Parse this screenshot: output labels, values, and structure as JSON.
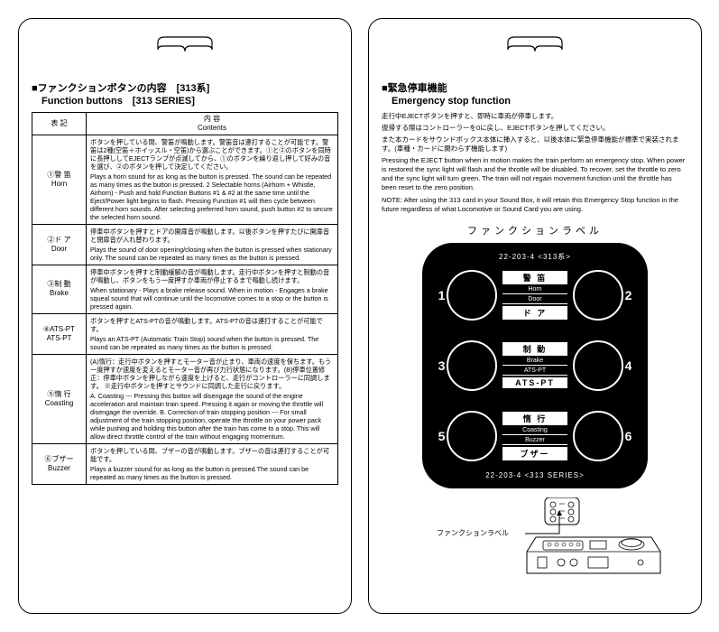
{
  "left": {
    "title_jp": "■ファンクションボタンの内容　[313系]",
    "title_en": "　Function buttons　[313 SERIES]",
    "th_label_jp": "表 記",
    "th_label_en": "",
    "th_content_jp": "内 容",
    "th_content_en": "Contents",
    "rows": [
      {
        "label_jp": "①警 笛",
        "label_en": "Horn",
        "jp": "ボタンを押している間、警笛が鳴動します。警笛音は連打することが可能です。警笛は2種(空笛＋ホイッスル・空笛)から選ぶことができます。①と②のボタンを同時に長押ししてEJECTランプが点滅してから、①のボタンを繰り返し押して好みの音を選び、②のボタンを押して決定してください。",
        "en": "Plays a horn sound for as long as the button is pressed. The sound can be repeated as many times as the button is pressed. 2 Selectable horns (Airhorn + Whistle, Airhorn) - Push and hold Function Buttons #1 & #2 at the same time until the Eject/Power light begins to flash. Pressing Function #1 will then cycle between different horn sounds. After selecting preferred horn sound, push button #2 to secure the selected horn sound."
      },
      {
        "label_jp": "②ド ア",
        "label_en": "Door",
        "jp": "停車中ボタンを押すとドアの開扉音が鳴動します。以後ボタンを押すたびに開扉音と閉扉音が入れ替わります。",
        "en": "Plays the sound of door opening/closing when the button is pressed when stationary only. The sound can be repeated as many times as the button is pressed."
      },
      {
        "label_jp": "③制 動",
        "label_en": "Brake",
        "jp": "停車中ボタンを押すと制動緩解の音が鳴動します。走行中ボタンを押すと制動の音が鳴動し、ボタンをもう一度押すか車両が停止するまで鳴動し続けます。",
        "en": "When stationary - Plays a brake release sound.\nWhen in motion - Engages a brake squeal sound that will continue until the locomotive comes to a stop or the button is pressed again."
      },
      {
        "label_jp": "④ATS-PT",
        "label_en": "ATS-PT",
        "jp": "ボタンを押すとATS-PTの音が鳴動します。ATS-PTの音は連打することが可能です。",
        "en": "Plays an ATS-PT (Automatic Train Stop) sound when the button is pressed. The sound can be repeated as many times as the button is pressed."
      },
      {
        "label_jp": "⑤惰 行",
        "label_en": "Coasting",
        "jp": "(A)惰行：走行中ボタンを押すとモーター音が止まり、車両の速度を保ちます。もう一度押すか速度を変えるとモーター音が再び力行状態になります。(B)停車位置修正：停車中ボタンを押しながら速度を上げると、走行がコントローラーに同調します。\n※走行中ボタンを押すとサウンドに同調した走行に戻ります。",
        "en": "A. Coasting --- Pressing this button will disengage the sound of the engine acceleration and maintain train speed. Pressing it again or moving the throttle will disengage the override.\nB. Correction of train stopping position --- For small adjustment of the train stopping position, operate the throttle on your power pack while pushing and holding this button after the train has come to a stop. This will allow direct throttle control of the train without engaging momentum."
      },
      {
        "label_jp": "⑥ブザー",
        "label_en": "Buzzer",
        "jp": "ボタンを押している間、ブザーの音が鳴動します。ブザーの音は連打することが可能です。",
        "en": "Plays a buzzer sound for as long as the button is pressed.The sound can be repeated as many times as the button is pressed."
      }
    ]
  },
  "right": {
    "es_title_jp": "■緊急停車機能",
    "es_title_en": "　Emergency stop function",
    "es_jp1": "走行中EJECTボタンを押すと、即時に車両が停車します。",
    "es_jp2": "復帰する際はコントローラーを0に戻し、EJECTボタンを押してください。",
    "es_jp3": "また本カードをサウンドボックス本体に挿入すると、以後本体に緊急停車機能が標準で実装されます。(車種・カードに関わらず機能します)",
    "es_en1": "Pressing the EJECT button when in motion makes the train perform an emergency stop. When power is restored the sync light will flash and the throttle will be disabled. To recover, set the throttle to zero and the sync light will turn green. The train will not regain movement function until the throttle has been reset to the zero position.",
    "es_en2": "NOTE: After using the 313 card in your Sound Box, it will retain this Emergency Stop function in the future regardless of what Locomotive or Sound Card you are using.",
    "label_caption": "ファンクションラベル",
    "black_label": {
      "top_text": "22-203-4 <313系>",
      "bottom_text": "22-203-4 <313 SERIES>",
      "rows": [
        {
          "l": "1",
          "r": "2",
          "main": "警 笛",
          "sub": "Horn",
          "main_pos": "top"
        },
        {
          "l": "3",
          "r": "4",
          "main": "ド ア",
          "sub": "Door",
          "main_pos": "bottom"
        },
        {
          "l": "",
          "r": "",
          "main": "制 動",
          "sub": "Brake",
          "main_pos": "top"
        },
        {
          "l": "",
          "r": "",
          "main": "ATS-PT",
          "sub": "ATS-PT",
          "main_pos": "bottom"
        },
        {
          "l": "5",
          "r": "6",
          "main": "惰 行",
          "sub": "Coasting",
          "main_pos": "top"
        },
        {
          "l": "",
          "r": "",
          "main": "ブザー",
          "sub": "Buzzer",
          "main_pos": "bottom"
        }
      ]
    },
    "diag_caption": "ファンクションラベル"
  },
  "colors": {
    "border": "#000000",
    "bg": "#ffffff",
    "label_bg": "#000000",
    "label_fg": "#ffffff"
  }
}
